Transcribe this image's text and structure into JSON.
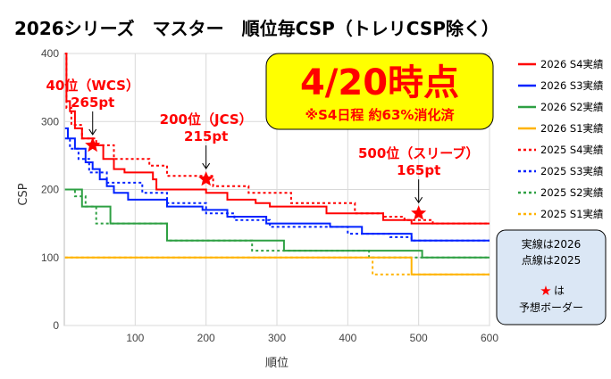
{
  "chart_data": {
    "type": "line",
    "title": "2026シリーズ　マスター　順位毎CSP（トレリCSP除く）",
    "xlabel": "順位",
    "ylabel": "CSP",
    "xlim": [
      0,
      600
    ],
    "ylim": [
      0,
      400
    ],
    "xticks": [
      "100",
      "200",
      "300",
      "400",
      "500",
      "600"
    ],
    "yticks": [
      "0",
      "100",
      "200",
      "300",
      "400"
    ],
    "grid": true,
    "legend_position": "right",
    "series": [
      {
        "name": "2026 S4実績",
        "color": "#ff0000",
        "dash": false,
        "points": [
          [
            1,
            400
          ],
          [
            3,
            330
          ],
          [
            8,
            315
          ],
          [
            15,
            290
          ],
          [
            25,
            275
          ],
          [
            40,
            265
          ],
          [
            55,
            245
          ],
          [
            70,
            230
          ],
          [
            85,
            225
          ],
          [
            125,
            215
          ],
          [
            130,
            200
          ],
          [
            200,
            195
          ],
          [
            230,
            185
          ],
          [
            270,
            180
          ],
          [
            290,
            175
          ],
          [
            370,
            165
          ],
          [
            450,
            155
          ],
          [
            490,
            150
          ],
          [
            600,
            150
          ]
        ]
      },
      {
        "name": "2026 S3実績",
        "color": "#0022ff",
        "dash": false,
        "points": [
          [
            1,
            290
          ],
          [
            5,
            275
          ],
          [
            15,
            260
          ],
          [
            30,
            240
          ],
          [
            40,
            230
          ],
          [
            50,
            215
          ],
          [
            60,
            205
          ],
          [
            70,
            195
          ],
          [
            90,
            185
          ],
          [
            145,
            175
          ],
          [
            195,
            170
          ],
          [
            230,
            160
          ],
          [
            285,
            150
          ],
          [
            375,
            145
          ],
          [
            420,
            135
          ],
          [
            490,
            125
          ],
          [
            600,
            125
          ]
        ]
      },
      {
        "name": "2026 S2実績",
        "color": "#2ea043",
        "dash": false,
        "points": [
          [
            1,
            200
          ],
          [
            22,
            200
          ],
          [
            25,
            175
          ],
          [
            60,
            175
          ],
          [
            65,
            150
          ],
          [
            140,
            150
          ],
          [
            145,
            125
          ],
          [
            240,
            125
          ],
          [
            310,
            110
          ],
          [
            500,
            110
          ],
          [
            505,
            100
          ],
          [
            600,
            100
          ]
        ]
      },
      {
        "name": "2026 S1実績",
        "color": "#ffb300",
        "dash": false,
        "points": [
          [
            1,
            100
          ],
          [
            487,
            100
          ],
          [
            490,
            75
          ],
          [
            600,
            75
          ]
        ]
      },
      {
        "name": "2025 S4実績",
        "color": "#ff0000",
        "dash": true,
        "points": [
          [
            1,
            400
          ],
          [
            3,
            320
          ],
          [
            10,
            295
          ],
          [
            25,
            275
          ],
          [
            45,
            265
          ],
          [
            70,
            245
          ],
          [
            120,
            235
          ],
          [
            145,
            220
          ],
          [
            210,
            205
          ],
          [
            260,
            195
          ],
          [
            320,
            180
          ],
          [
            410,
            165
          ],
          [
            450,
            160
          ],
          [
            480,
            155
          ],
          [
            520,
            150
          ],
          [
            600,
            150
          ]
        ]
      },
      {
        "name": "2025 S3実績",
        "color": "#0022ff",
        "dash": true,
        "points": [
          [
            1,
            275
          ],
          [
            8,
            260
          ],
          [
            20,
            245
          ],
          [
            35,
            225
          ],
          [
            60,
            210
          ],
          [
            110,
            195
          ],
          [
            145,
            180
          ],
          [
            200,
            165
          ],
          [
            240,
            155
          ],
          [
            290,
            145
          ],
          [
            400,
            135
          ],
          [
            460,
            130
          ],
          [
            490,
            125
          ],
          [
            600,
            125
          ]
        ]
      },
      {
        "name": "2025 S2実績",
        "color": "#2ea043",
        "dash": true,
        "points": [
          [
            1,
            200
          ],
          [
            15,
            190
          ],
          [
            30,
            175
          ],
          [
            45,
            150
          ],
          [
            70,
            150
          ],
          [
            145,
            125
          ],
          [
            260,
            125
          ],
          [
            265,
            110
          ],
          [
            420,
            110
          ],
          [
            430,
            100
          ],
          [
            600,
            100
          ]
        ]
      },
      {
        "name": "2025 S1実績",
        "color": "#ffb300",
        "dash": true,
        "points": [
          [
            1,
            100
          ],
          [
            430,
            100
          ],
          [
            435,
            75
          ],
          [
            600,
            75
          ]
        ]
      }
    ],
    "markers": [
      {
        "x": 40,
        "y": 265,
        "label_rank": "40位（WCS）",
        "label_value": "265pt"
      },
      {
        "x": 200,
        "y": 215,
        "label_rank": "200位（JCS）",
        "label_value": "215pt"
      },
      {
        "x": 500,
        "y": 165,
        "label_rank": "500位（スリーブ）",
        "label_value": "165pt"
      }
    ]
  },
  "headline": {
    "date": "4/20時点",
    "subtitle": "※S4日程 約63%消化済",
    "bg_color": "#ffff00"
  },
  "note_box": {
    "line1": "実線は2026",
    "line2": "点線は2025",
    "star_glyph": "★",
    "line3": "は",
    "line4": "予想ボーダー",
    "bg_color": "#dbe7f5"
  }
}
